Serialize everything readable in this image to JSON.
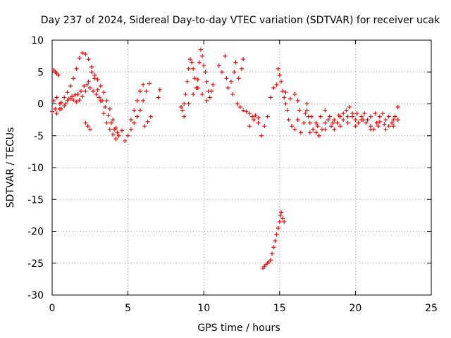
{
  "chart_data": {
    "type": "scatter",
    "title": "Day 237 of 2024, Sidereal Day-to-day VTEC variation (SDTVAR) for receiver ucak",
    "xlabel": "GPS time / hours",
    "ylabel": "SDTVAR / TECUs",
    "xlim": [
      0,
      25
    ],
    "ylim": [
      -30,
      10
    ],
    "x_ticks": [
      0,
      5,
      10,
      15,
      20,
      25
    ],
    "y_ticks": [
      -30,
      -25,
      -20,
      -15,
      -10,
      -5,
      0,
      5,
      10
    ],
    "grid": true,
    "marker": "+",
    "color": "#ff0000",
    "series": [
      {
        "name": "ucak",
        "points": [
          [
            0.0,
            -1.2
          ],
          [
            0.1,
            5.3
          ],
          [
            0.2,
            5.0
          ],
          [
            0.3,
            4.8
          ],
          [
            0.4,
            4.5
          ],
          [
            0.5,
            -0.8
          ],
          [
            0.6,
            0.2
          ],
          [
            0.8,
            1.0
          ],
          [
            1.0,
            1.8
          ],
          [
            1.2,
            2.8
          ],
          [
            1.4,
            4.0
          ],
          [
            1.6,
            5.5
          ],
          [
            1.8,
            7.2
          ],
          [
            2.0,
            8.0
          ],
          [
            2.2,
            7.8
          ],
          [
            2.4,
            7.0
          ],
          [
            2.6,
            5.8
          ],
          [
            2.8,
            4.0
          ],
          [
            3.0,
            2.2
          ],
          [
            3.2,
            0.5
          ],
          [
            3.4,
            -1.5
          ],
          [
            3.6,
            -3.0
          ],
          [
            3.8,
            -4.0
          ],
          [
            4.0,
            -4.8
          ],
          [
            4.2,
            -5.5
          ],
          [
            4.4,
            -5.0
          ],
          [
            4.6,
            -4.2
          ],
          [
            4.8,
            -5.8
          ],
          [
            5.0,
            -5.0
          ],
          [
            5.2,
            -4.0
          ],
          [
            5.4,
            -3.0
          ],
          [
            5.6,
            -2.0
          ],
          [
            5.8,
            -1.0
          ],
          [
            6.0,
            0.5
          ],
          [
            6.2,
            2.0
          ],
          [
            6.4,
            3.2
          ],
          [
            0.2,
            -0.8
          ],
          [
            0.5,
            0.0
          ],
          [
            0.8,
            -0.3
          ],
          [
            1.0,
            0.5
          ],
          [
            1.2,
            0.8
          ],
          [
            1.4,
            0.6
          ],
          [
            1.6,
            0.3
          ],
          [
            1.8,
            0.6
          ],
          [
            2.0,
            1.2
          ],
          [
            2.2,
            2.0
          ],
          [
            2.4,
            3.5
          ],
          [
            2.6,
            5.0
          ],
          [
            2.8,
            4.5
          ],
          [
            3.0,
            3.8
          ],
          [
            3.2,
            2.8
          ],
          [
            3.4,
            1.8
          ],
          [
            3.6,
            0.5
          ],
          [
            3.8,
            -0.8
          ],
          [
            4.0,
            -2.5
          ],
          [
            4.2,
            -3.8
          ],
          [
            0.3,
            -1.5
          ],
          [
            0.6,
            -0.8
          ],
          [
            0.9,
            0.0
          ],
          [
            1.1,
            0.8
          ],
          [
            1.3,
            1.2
          ],
          [
            1.5,
            1.4
          ],
          [
            1.7,
            1.5
          ],
          [
            1.9,
            2.0
          ],
          [
            2.1,
            2.8
          ],
          [
            2.3,
            3.0
          ],
          [
            2.5,
            2.5
          ],
          [
            2.7,
            2.0
          ],
          [
            2.9,
            1.5
          ],
          [
            3.1,
            1.0
          ],
          [
            3.3,
            0.5
          ],
          [
            3.5,
            -0.5
          ],
          [
            3.7,
            -1.8
          ],
          [
            3.9,
            -3.0
          ],
          [
            4.1,
            -4.0
          ],
          [
            4.3,
            -4.5
          ],
          [
            2.2,
            -3.0
          ],
          [
            2.35,
            -3.5
          ],
          [
            2.5,
            -4.0
          ],
          [
            0.1,
            0.5
          ],
          [
            0.3,
            1.0
          ],
          [
            5.2,
            -2.5
          ],
          [
            5.4,
            -1.0
          ],
          [
            5.6,
            0.5
          ],
          [
            5.8,
            2.0
          ],
          [
            6.0,
            3.0
          ],
          [
            6.1,
            -3.5
          ],
          [
            6.3,
            -2.8
          ],
          [
            6.5,
            -2.0
          ],
          [
            7.0,
            1.0
          ],
          [
            7.1,
            2.2
          ],
          [
            8.5,
            -0.5
          ],
          [
            8.6,
            -1.0
          ],
          [
            8.7,
            0.0
          ],
          [
            8.8,
            1.5
          ],
          [
            8.9,
            3.5
          ],
          [
            9.0,
            5.5
          ],
          [
            9.1,
            7.0
          ],
          [
            9.2,
            6.5
          ],
          [
            9.3,
            5.5
          ],
          [
            9.4,
            4.0
          ],
          [
            9.5,
            2.5
          ],
          [
            9.6,
            3.8
          ],
          [
            9.7,
            6.5
          ],
          [
            9.8,
            8.5
          ],
          [
            9.9,
            7.5
          ],
          [
            10.0,
            6.0
          ],
          [
            10.1,
            5.0
          ],
          [
            10.2,
            3.5
          ],
          [
            10.3,
            2.0
          ],
          [
            10.4,
            1.0
          ],
          [
            8.7,
            -2.0
          ],
          [
            9.0,
            0.0
          ],
          [
            9.3,
            1.5
          ],
          [
            9.6,
            2.5
          ],
          [
            9.9,
            1.5
          ],
          [
            10.2,
            0.5
          ],
          [
            10.5,
            2.0
          ],
          [
            10.6,
            3.0
          ],
          [
            11.0,
            6.0
          ],
          [
            11.2,
            5.0
          ],
          [
            11.4,
            7.5
          ],
          [
            11.5,
            4.0
          ],
          [
            11.6,
            2.5
          ],
          [
            11.8,
            3.5
          ],
          [
            12.0,
            5.0
          ],
          [
            12.1,
            6.5
          ],
          [
            12.3,
            4.0
          ],
          [
            12.5,
            5.5
          ],
          [
            12.6,
            7.0
          ],
          [
            11.9,
            1.5
          ],
          [
            12.2,
            0.0
          ],
          [
            12.4,
            -0.5
          ],
          [
            12.6,
            -1.0
          ],
          [
            12.8,
            -1.2
          ],
          [
            13.0,
            -1.5
          ],
          [
            13.2,
            -2.0
          ],
          [
            13.4,
            -1.8
          ],
          [
            13.6,
            -2.2
          ],
          [
            13.0,
            -3.5
          ],
          [
            13.3,
            -2.5
          ],
          [
            13.6,
            -3.0
          ],
          [
            13.8,
            -5.0
          ],
          [
            14.0,
            -3.5
          ],
          [
            14.2,
            -2.0
          ],
          [
            14.4,
            1.0
          ],
          [
            14.6,
            2.5
          ],
          [
            14.8,
            3.0
          ],
          [
            15.0,
            4.5
          ],
          [
            14.9,
            5.5
          ],
          [
            15.1,
            3.5
          ],
          [
            15.2,
            2.0
          ],
          [
            15.3,
            1.0
          ],
          [
            15.4,
            0.0
          ],
          [
            15.5,
            -1.0
          ],
          [
            15.6,
            -2.5
          ],
          [
            15.8,
            -3.5
          ],
          [
            16.0,
            -4.0
          ],
          [
            16.2,
            -2.5
          ],
          [
            15.4,
            1.8
          ],
          [
            15.7,
            0.8
          ],
          [
            16.0,
            1.5
          ],
          [
            16.2,
            0.5
          ],
          [
            16.3,
            -1.0
          ],
          [
            13.9,
            -25.8
          ],
          [
            14.0,
            -25.5
          ],
          [
            14.1,
            -25.2
          ],
          [
            14.2,
            -25.0
          ],
          [
            14.3,
            -24.8
          ],
          [
            14.4,
            -24.5
          ],
          [
            14.5,
            -23.5
          ],
          [
            14.6,
            -22.5
          ],
          [
            14.7,
            -21.5
          ],
          [
            14.8,
            -20.5
          ],
          [
            14.9,
            -19.5
          ],
          [
            15.0,
            -18.5
          ],
          [
            15.05,
            -17.5
          ],
          [
            15.1,
            -17.0
          ],
          [
            15.2,
            -18.0
          ],
          [
            15.3,
            -18.5
          ],
          [
            16.4,
            -4.5
          ],
          [
            16.6,
            -3.0
          ],
          [
            16.7,
            -1.5
          ],
          [
            16.8,
            0.0
          ],
          [
            16.9,
            -2.0
          ],
          [
            17.0,
            -3.0
          ],
          [
            17.2,
            -4.0
          ],
          [
            17.4,
            -4.5
          ],
          [
            17.6,
            -5.0
          ],
          [
            17.8,
            -4.0
          ],
          [
            18.0,
            -3.0
          ],
          [
            18.2,
            -2.5
          ],
          [
            18.4,
            -3.5
          ],
          [
            18.6,
            -4.0
          ],
          [
            18.8,
            -3.0
          ],
          [
            19.0,
            -2.0
          ],
          [
            19.2,
            -1.5
          ],
          [
            19.4,
            -1.0
          ],
          [
            19.6,
            -0.5
          ],
          [
            19.8,
            -1.5
          ],
          [
            20.0,
            -2.5
          ],
          [
            20.2,
            -3.0
          ],
          [
            20.4,
            -2.0
          ],
          [
            20.6,
            -1.5
          ],
          [
            20.8,
            -2.5
          ],
          [
            21.0,
            -3.5
          ],
          [
            21.2,
            -4.0
          ],
          [
            21.4,
            -3.0
          ],
          [
            21.6,
            -2.0
          ],
          [
            21.8,
            -1.5
          ],
          [
            22.0,
            -2.5
          ],
          [
            22.2,
            -3.5
          ],
          [
            22.4,
            -3.0
          ],
          [
            22.6,
            -2.0
          ],
          [
            22.8,
            -0.5
          ],
          [
            16.8,
            -1.0
          ],
          [
            17.1,
            -2.0
          ],
          [
            17.4,
            -3.0
          ],
          [
            17.7,
            -2.0
          ],
          [
            18.0,
            -1.0
          ],
          [
            18.3,
            -2.0
          ],
          [
            18.6,
            -2.5
          ],
          [
            18.9,
            -1.8
          ],
          [
            19.2,
            -2.5
          ],
          [
            19.5,
            -3.0
          ],
          [
            19.8,
            -2.0
          ],
          [
            20.1,
            -1.5
          ],
          [
            20.4,
            -2.5
          ],
          [
            20.7,
            -3.0
          ],
          [
            21.0,
            -2.0
          ],
          [
            21.3,
            -1.5
          ],
          [
            21.6,
            -2.8
          ],
          [
            21.9,
            -3.2
          ],
          [
            22.2,
            -2.0
          ],
          [
            22.5,
            -2.5
          ],
          [
            17.0,
            -4.5
          ],
          [
            17.5,
            -3.5
          ],
          [
            18.0,
            -4.0
          ],
          [
            18.5,
            -3.0
          ],
          [
            19.0,
            -3.5
          ],
          [
            19.5,
            -2.0
          ],
          [
            20.0,
            -3.5
          ],
          [
            20.5,
            -2.5
          ],
          [
            21.0,
            -4.0
          ],
          [
            21.5,
            -3.5
          ],
          [
            22.0,
            -4.0
          ],
          [
            22.5,
            -3.5
          ],
          [
            22.8,
            -2.5
          ]
        ]
      }
    ]
  }
}
